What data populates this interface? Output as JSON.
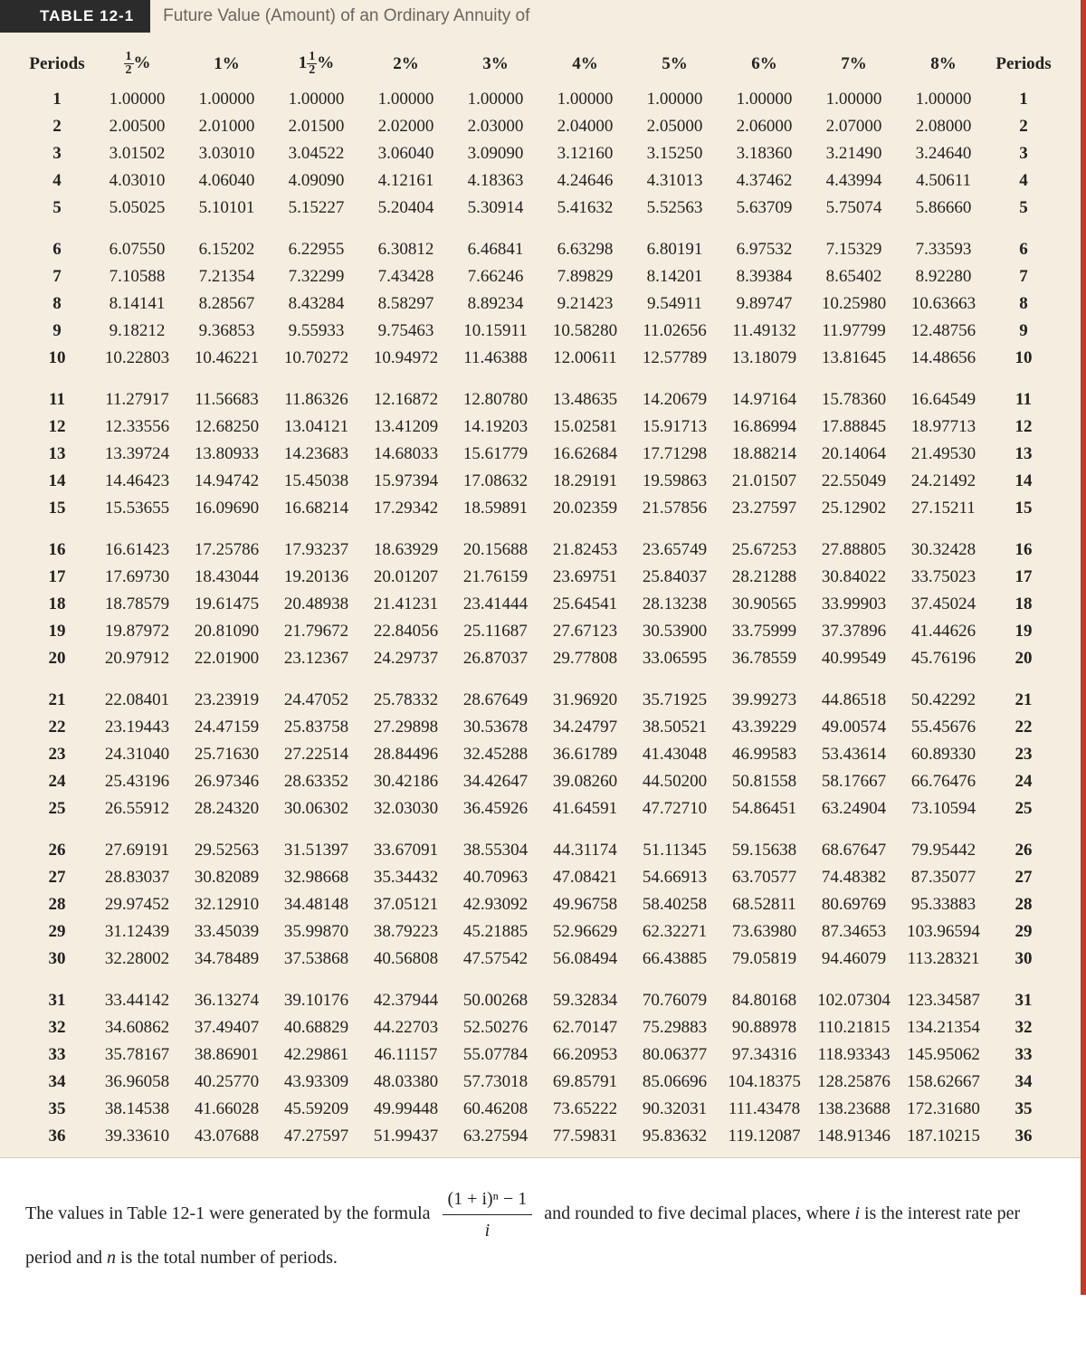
{
  "header": {
    "badge": "TABLE 12-1",
    "title": "Future Value (Amount) of an Ordinary Annuity of"
  },
  "table": {
    "periods_label": "Periods",
    "col_headers": [
      "½%",
      "1%",
      "1½%",
      "2%",
      "3%",
      "4%",
      "5%",
      "6%",
      "7%",
      "8%"
    ],
    "col_header_special": [
      true,
      false,
      true,
      false,
      false,
      false,
      false,
      false,
      false,
      false
    ],
    "background_color": "#f5ede0",
    "border_color": "#c23b22",
    "groups": [
      {
        "start": 1,
        "rows": [
          [
            "1.00000",
            "1.00000",
            "1.00000",
            "1.00000",
            "1.00000",
            "1.00000",
            "1.00000",
            "1.00000",
            "1.00000",
            "1.00000"
          ],
          [
            "2.00500",
            "2.01000",
            "2.01500",
            "2.02000",
            "2.03000",
            "2.04000",
            "2.05000",
            "2.06000",
            "2.07000",
            "2.08000"
          ],
          [
            "3.01502",
            "3.03010",
            "3.04522",
            "3.06040",
            "3.09090",
            "3.12160",
            "3.15250",
            "3.18360",
            "3.21490",
            "3.24640"
          ],
          [
            "4.03010",
            "4.06040",
            "4.09090",
            "4.12161",
            "4.18363",
            "4.24646",
            "4.31013",
            "4.37462",
            "4.43994",
            "4.50611"
          ],
          [
            "5.05025",
            "5.10101",
            "5.15227",
            "5.20404",
            "5.30914",
            "5.41632",
            "5.52563",
            "5.63709",
            "5.75074",
            "5.86660"
          ]
        ]
      },
      {
        "start": 6,
        "rows": [
          [
            "6.07550",
            "6.15202",
            "6.22955",
            "6.30812",
            "6.46841",
            "6.63298",
            "6.80191",
            "6.97532",
            "7.15329",
            "7.33593"
          ],
          [
            "7.10588",
            "7.21354",
            "7.32299",
            "7.43428",
            "7.66246",
            "7.89829",
            "8.14201",
            "8.39384",
            "8.65402",
            "8.92280"
          ],
          [
            "8.14141",
            "8.28567",
            "8.43284",
            "8.58297",
            "8.89234",
            "9.21423",
            "9.54911",
            "9.89747",
            "10.25980",
            "10.63663"
          ],
          [
            "9.18212",
            "9.36853",
            "9.55933",
            "9.75463",
            "10.15911",
            "10.58280",
            "11.02656",
            "11.49132",
            "11.97799",
            "12.48756"
          ],
          [
            "10.22803",
            "10.46221",
            "10.70272",
            "10.94972",
            "11.46388",
            "12.00611",
            "12.57789",
            "13.18079",
            "13.81645",
            "14.48656"
          ]
        ]
      },
      {
        "start": 11,
        "rows": [
          [
            "11.27917",
            "11.56683",
            "11.86326",
            "12.16872",
            "12.80780",
            "13.48635",
            "14.20679",
            "14.97164",
            "15.78360",
            "16.64549"
          ],
          [
            "12.33556",
            "12.68250",
            "13.04121",
            "13.41209",
            "14.19203",
            "15.02581",
            "15.91713",
            "16.86994",
            "17.88845",
            "18.97713"
          ],
          [
            "13.39724",
            "13.80933",
            "14.23683",
            "14.68033",
            "15.61779",
            "16.62684",
            "17.71298",
            "18.88214",
            "20.14064",
            "21.49530"
          ],
          [
            "14.46423",
            "14.94742",
            "15.45038",
            "15.97394",
            "17.08632",
            "18.29191",
            "19.59863",
            "21.01507",
            "22.55049",
            "24.21492"
          ],
          [
            "15.53655",
            "16.09690",
            "16.68214",
            "17.29342",
            "18.59891",
            "20.02359",
            "21.57856",
            "23.27597",
            "25.12902",
            "27.15211"
          ]
        ]
      },
      {
        "start": 16,
        "rows": [
          [
            "16.61423",
            "17.25786",
            "17.93237",
            "18.63929",
            "20.15688",
            "21.82453",
            "23.65749",
            "25.67253",
            "27.88805",
            "30.32428"
          ],
          [
            "17.69730",
            "18.43044",
            "19.20136",
            "20.01207",
            "21.76159",
            "23.69751",
            "25.84037",
            "28.21288",
            "30.84022",
            "33.75023"
          ],
          [
            "18.78579",
            "19.61475",
            "20.48938",
            "21.41231",
            "23.41444",
            "25.64541",
            "28.13238",
            "30.90565",
            "33.99903",
            "37.45024"
          ],
          [
            "19.87972",
            "20.81090",
            "21.79672",
            "22.84056",
            "25.11687",
            "27.67123",
            "30.53900",
            "33.75999",
            "37.37896",
            "41.44626"
          ],
          [
            "20.97912",
            "22.01900",
            "23.12367",
            "24.29737",
            "26.87037",
            "29.77808",
            "33.06595",
            "36.78559",
            "40.99549",
            "45.76196"
          ]
        ]
      },
      {
        "start": 21,
        "rows": [
          [
            "22.08401",
            "23.23919",
            "24.47052",
            "25.78332",
            "28.67649",
            "31.96920",
            "35.71925",
            "39.99273",
            "44.86518",
            "50.42292"
          ],
          [
            "23.19443",
            "24.47159",
            "25.83758",
            "27.29898",
            "30.53678",
            "34.24797",
            "38.50521",
            "43.39229",
            "49.00574",
            "55.45676"
          ],
          [
            "24.31040",
            "25.71630",
            "27.22514",
            "28.84496",
            "32.45288",
            "36.61789",
            "41.43048",
            "46.99583",
            "53.43614",
            "60.89330"
          ],
          [
            "25.43196",
            "26.97346",
            "28.63352",
            "30.42186",
            "34.42647",
            "39.08260",
            "44.50200",
            "50.81558",
            "58.17667",
            "66.76476"
          ],
          [
            "26.55912",
            "28.24320",
            "30.06302",
            "32.03030",
            "36.45926",
            "41.64591",
            "47.72710",
            "54.86451",
            "63.24904",
            "73.10594"
          ]
        ]
      },
      {
        "start": 26,
        "rows": [
          [
            "27.69191",
            "29.52563",
            "31.51397",
            "33.67091",
            "38.55304",
            "44.31174",
            "51.11345",
            "59.15638",
            "68.67647",
            "79.95442"
          ],
          [
            "28.83037",
            "30.82089",
            "32.98668",
            "35.34432",
            "40.70963",
            "47.08421",
            "54.66913",
            "63.70577",
            "74.48382",
            "87.35077"
          ],
          [
            "29.97452",
            "32.12910",
            "34.48148",
            "37.05121",
            "42.93092",
            "49.96758",
            "58.40258",
            "68.52811",
            "80.69769",
            "95.33883"
          ],
          [
            "31.12439",
            "33.45039",
            "35.99870",
            "38.79223",
            "45.21885",
            "52.96629",
            "62.32271",
            "73.63980",
            "87.34653",
            "103.96594"
          ],
          [
            "32.28002",
            "34.78489",
            "37.53868",
            "40.56808",
            "47.57542",
            "56.08494",
            "66.43885",
            "79.05819",
            "94.46079",
            "113.28321"
          ]
        ]
      },
      {
        "start": 31,
        "rows": [
          [
            "33.44142",
            "36.13274",
            "39.10176",
            "42.37944",
            "50.00268",
            "59.32834",
            "70.76079",
            "84.80168",
            "102.07304",
            "123.34587"
          ],
          [
            "34.60862",
            "37.49407",
            "40.68829",
            "44.22703",
            "52.50276",
            "62.70147",
            "75.29883",
            "90.88978",
            "110.21815",
            "134.21354"
          ],
          [
            "35.78167",
            "38.86901",
            "42.29861",
            "46.11157",
            "55.07784",
            "66.20953",
            "80.06377",
            "97.34316",
            "118.93343",
            "145.95062"
          ],
          [
            "36.96058",
            "40.25770",
            "43.93309",
            "48.03380",
            "57.73018",
            "69.85791",
            "85.06696",
            "104.18375",
            "128.25876",
            "158.62667"
          ],
          [
            "38.14538",
            "41.66028",
            "45.59209",
            "49.99448",
            "60.46208",
            "73.65222",
            "90.32031",
            "111.43478",
            "138.23688",
            "172.31680"
          ],
          [
            "39.33610",
            "43.07688",
            "47.27597",
            "51.99437",
            "63.27594",
            "77.59831",
            "95.83632",
            "119.12087",
            "148.91346",
            "187.10215"
          ]
        ]
      }
    ]
  },
  "footnote": {
    "pre": "The values in Table 12-1 were generated by the formula ",
    "formula_top": "(1 + i)ⁿ − 1",
    "formula_bot": "i",
    "post1": " and rounded to five decimal places, where ",
    "var_i": "i",
    "post2": " is the interest rate per period and ",
    "var_n": "n",
    "post3": " is the total number of periods."
  }
}
